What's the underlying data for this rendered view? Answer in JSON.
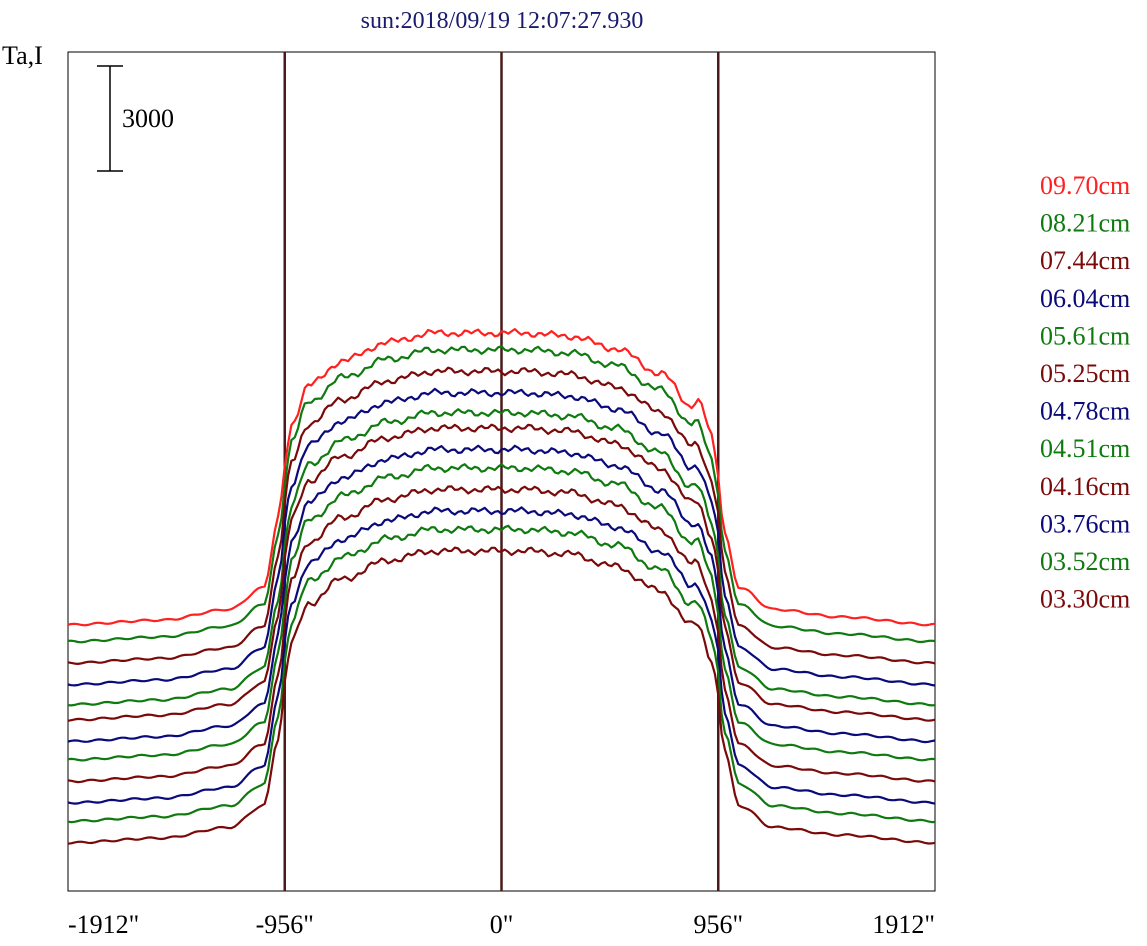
{
  "title": "sun:2018/09/19 12:07:27.930",
  "colors": {
    "title": "#1a1a6e",
    "frame": "#000000",
    "marker_lines": "#4a1a1a",
    "series": {
      "red": "#ff2020",
      "green": "#0f7a0f",
      "maroon": "#7a0a0a",
      "blue": "#0a0a7a"
    }
  },
  "chart_data": {
    "type": "line",
    "title": "sun:2018/09/19 12:07:27.930",
    "ylabel": "Ta,I",
    "scale_bar_label": "3000",
    "scale_bar_value": 3000,
    "x_ticks": [
      -1912,
      -956,
      0,
      956,
      1912
    ],
    "x_tick_labels": [
      "-1912\"",
      "-956\"",
      "0\"",
      "956\"",
      "1912\""
    ],
    "xlim": [
      -1912,
      1912
    ],
    "vertical_markers": [
      -956,
      0,
      956
    ],
    "grid": false,
    "legend_position": "right",
    "legend": [
      {
        "label": "09.70cm",
        "color": "red"
      },
      {
        "label": "08.21cm",
        "color": "green"
      },
      {
        "label": "07.44cm",
        "color": "maroon"
      },
      {
        "label": "06.04cm",
        "color": "blue"
      },
      {
        "label": "05.61cm",
        "color": "green"
      },
      {
        "label": "05.25cm",
        "color": "maroon"
      },
      {
        "label": "04.78cm",
        "color": "blue"
      },
      {
        "label": "04.51cm",
        "color": "green"
      },
      {
        "label": "04.16cm",
        "color": "maroon"
      },
      {
        "label": "03.76cm",
        "color": "blue"
      },
      {
        "label": "03.52cm",
        "color": "green"
      },
      {
        "label": "03.30cm",
        "color": "maroon"
      }
    ],
    "profile_shape": {
      "x": [
        -1912,
        -1500,
        -1200,
        -1050,
        -980,
        -956,
        -930,
        -850,
        -700,
        -500,
        -300,
        -100,
        0,
        100,
        300,
        500,
        700,
        850,
        930,
        956,
        980,
        1050,
        1200,
        1500,
        1912
      ],
      "y": [
        0,
        150,
        500,
        1200,
        3500,
        5200,
        6500,
        7800,
        8600,
        9200,
        9500,
        9500,
        9500,
        9500,
        9400,
        9000,
        8200,
        7000,
        5800,
        4800,
        3000,
        1200,
        500,
        250,
        0
      ]
    },
    "series": [
      {
        "color": "red",
        "offset": 7500,
        "amplitude": 1.0
      },
      {
        "color": "green",
        "offset": 6950,
        "amplitude": 1.0
      },
      {
        "color": "maroon",
        "offset": 6250,
        "amplitude": 1.0
      },
      {
        "color": "blue",
        "offset": 5550,
        "amplitude": 1.0
      },
      {
        "color": "green",
        "offset": 4900,
        "amplitude": 1.0
      },
      {
        "color": "maroon",
        "offset": 4400,
        "amplitude": 1.0
      },
      {
        "color": "blue",
        "offset": 3700,
        "amplitude": 1.0
      },
      {
        "color": "green",
        "offset": 3100,
        "amplitude": 1.0
      },
      {
        "color": "maroon",
        "offset": 2400,
        "amplitude": 1.0
      },
      {
        "color": "blue",
        "offset": 1700,
        "amplitude": 1.0
      },
      {
        "color": "green",
        "offset": 1100,
        "amplitude": 1.0
      },
      {
        "color": "maroon",
        "offset": 400,
        "amplitude": 1.0
      }
    ],
    "right_limb_bump": {
      "x": 890,
      "height": 600
    },
    "ylim": [
      0,
      25500
    ]
  }
}
